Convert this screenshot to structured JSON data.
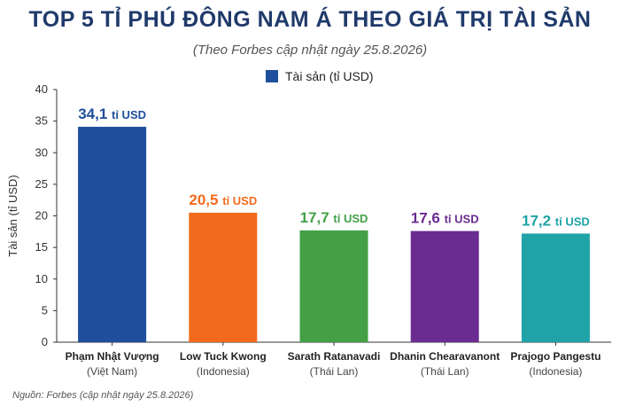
{
  "chart_data": {
    "type": "bar",
    "title": "TOP 5 TỈ PHÚ ĐÔNG NAM Á THEO GIÁ TRỊ TÀI SẢN",
    "subtitle": "(Theo Forbes cập nhật ngày 25.8.2026)",
    "ylabel": "Tài sản (tỉ USD)",
    "xlabel": "",
    "ylim": [
      0,
      40
    ],
    "yticks": [
      0,
      5,
      10,
      15,
      20,
      25,
      30,
      35,
      40
    ],
    "legend": {
      "label": "Tài sản (tỉ USD)",
      "color": "#1f4e9c",
      "position": "top-center"
    },
    "grid": false,
    "categories": [
      {
        "name": "Phạm Nhật Vượng",
        "country": "(Việt Nam)"
      },
      {
        "name": "Low Tuck Kwong",
        "country": "(Indonesia)"
      },
      {
        "name": "Sarath Ratanavadi",
        "country": "(Thái Lan)"
      },
      {
        "name": "Dhanin Chearavanont",
        "country": "(Thái Lan)"
      },
      {
        "name": "Prajogo Pangestu",
        "country": "(Indonesia)"
      }
    ],
    "values": [
      34.1,
      20.5,
      17.7,
      17.6,
      17.2
    ],
    "data_labels": [
      {
        "number": "34,1",
        "unit": "tỉ USD"
      },
      {
        "number": "20,5",
        "unit": "tỉ USD"
      },
      {
        "number": "17,7",
        "unit": "tỉ USD"
      },
      {
        "number": "17,6",
        "unit": "tỉ USD"
      },
      {
        "number": "17,2",
        "unit": "tỉ USD"
      }
    ],
    "bar_colors": [
      "#1f4e9c",
      "#f26b1d",
      "#43a047",
      "#6a2c91",
      "#1fa3a6"
    ],
    "label_colors": [
      "#1f4e9c",
      "#f26b1d",
      "#43a047",
      "#6a2c91",
      "#1fa3a6"
    ]
  },
  "footer": "Nguồn: Forbes (cập nhật ngày 25.8.2026)"
}
